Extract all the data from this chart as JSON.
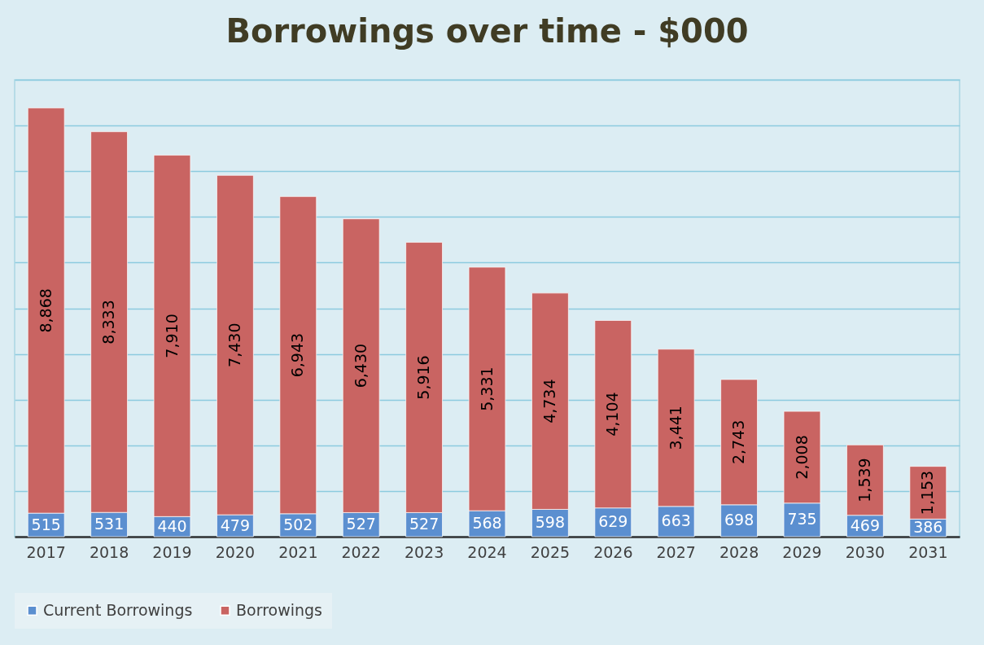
{
  "chart_data": {
    "type": "bar",
    "title": "Borrowings over time - $000",
    "categories": [
      "2017",
      "2018",
      "2019",
      "2020",
      "2021",
      "2022",
      "2023",
      "2024",
      "2025",
      "2026",
      "2027",
      "2028",
      "2029",
      "2030",
      "2031"
    ],
    "series": [
      {
        "name": "Current Borrowings",
        "color": "#5b8fd0",
        "values": [
          515,
          531,
          440,
          479,
          502,
          527,
          527,
          568,
          598,
          629,
          663,
          698,
          735,
          469,
          386
        ],
        "value_labels": [
          "515",
          "531",
          "440",
          "479",
          "502",
          "527",
          "527",
          "568",
          "598",
          "629",
          "663",
          "698",
          "735",
          "469",
          "386"
        ]
      },
      {
        "name": "Borrowings",
        "color": "#c96462",
        "values": [
          8868,
          8333,
          7910,
          7430,
          6943,
          6430,
          5916,
          5331,
          4734,
          4104,
          3441,
          2743,
          2008,
          1539,
          1153
        ],
        "value_labels": [
          "8,868",
          "8,333",
          "7,910",
          "7,430",
          "6,943",
          "6,430",
          "5,916",
          "5,331",
          "4,734",
          "4,104",
          "3,441",
          "2,743",
          "2,008",
          "1,539",
          "1,153"
        ]
      }
    ],
    "stacked": true,
    "ylim": [
      0,
      10000
    ],
    "yticks": [
      {
        "value": 0,
        "label": null
      },
      {
        "value": 1000,
        "label": null
      },
      {
        "value": 2000,
        "label": null
      },
      {
        "value": 3000,
        "label": null
      },
      {
        "value": 4000,
        "label": null
      },
      {
        "value": 5000,
        "label": null
      },
      {
        "value": 6000,
        "label": null
      },
      {
        "value": 7000,
        "label": null
      },
      {
        "value": 8000,
        "label": null
      },
      {
        "value": 9000,
        "label": null
      },
      {
        "value": 10000,
        "label": null
      }
    ],
    "tick_labels": "x",
    "grid": "y",
    "legend": "bottom"
  }
}
